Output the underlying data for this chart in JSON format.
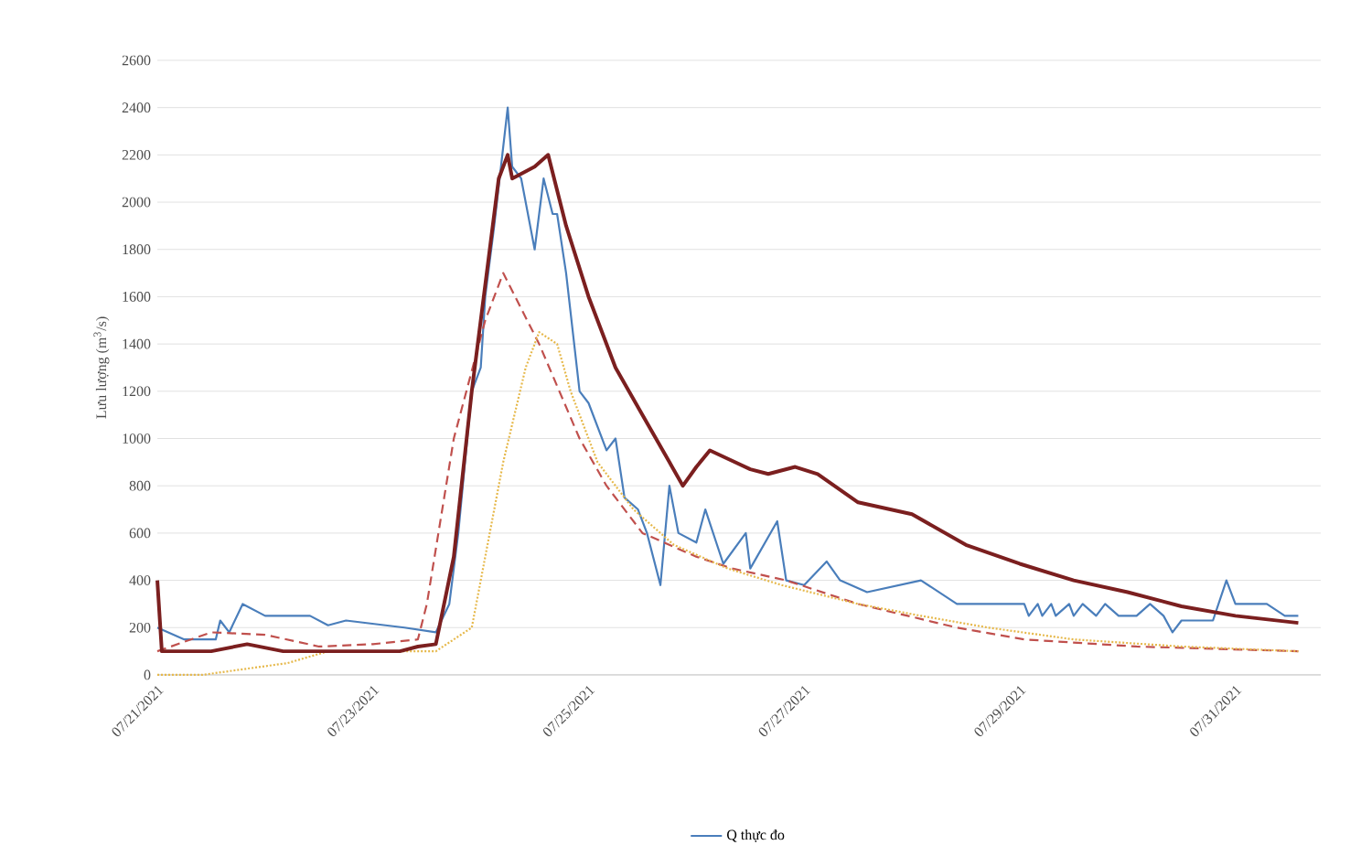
{
  "chart_data": {
    "type": "line",
    "ylabel": "Lưu lượng (m$^{3}$/s)",
    "xlim": [
      "2021-07-21T00:00",
      "2021-07-31T19:00"
    ],
    "xticks": [
      {
        "value": "2021-07-21",
        "label": "07/21/2021"
      },
      {
        "value": "2021-07-23",
        "label": "07/23/2021"
      },
      {
        "value": "2021-07-25",
        "label": "07/25/2021"
      },
      {
        "value": "2021-07-27",
        "label": "07/27/2021"
      },
      {
        "value": "2021-07-29",
        "label": "07/29/2021"
      },
      {
        "value": "2021-07-31",
        "label": "07/31/2021"
      }
    ],
    "ylim": [
      0,
      2600
    ],
    "yticks": [
      0,
      200,
      400,
      600,
      800,
      1000,
      1200,
      1400,
      1600,
      1800,
      2000,
      2200,
      2400,
      2600
    ],
    "grid": "y",
    "legend": "bottom",
    "series": [
      {
        "name": "Q thực đo",
        "color": "#4a7ebb",
        "line_style": "solid",
        "x": [
          "2021-07-21T00:00",
          "2021-07-21T06:00",
          "2021-07-21T13:00",
          "2021-07-21T14:00",
          "2021-07-21T16:00",
          "2021-07-21T19:00",
          "2021-07-22T00:00",
          "2021-07-22T10:00",
          "2021-07-22T14:00",
          "2021-07-22T18:00",
          "2021-07-23T07:00",
          "2021-07-23T14:00",
          "2021-07-23T17:00",
          "2021-07-23T19:00",
          "2021-07-23T22:00",
          "2021-07-24T00:00",
          "2021-07-24T01:00",
          "2021-07-24T03:00",
          "2021-07-24T06:00",
          "2021-07-24T07:00",
          "2021-07-24T09:00",
          "2021-07-24T12:00",
          "2021-07-24T14:00",
          "2021-07-24T16:00",
          "2021-07-24T17:00",
          "2021-07-24T19:00",
          "2021-07-24T22:00",
          "2021-07-25T00:00",
          "2021-07-25T04:00",
          "2021-07-25T06:00",
          "2021-07-25T08:00",
          "2021-07-25T11:00",
          "2021-07-25T13:00",
          "2021-07-25T16:00",
          "2021-07-25T18:00",
          "2021-07-25T20:00",
          "2021-07-26T00:00",
          "2021-07-26T02:00",
          "2021-07-26T06:00",
          "2021-07-26T11:00",
          "2021-07-26T12:00",
          "2021-07-26T18:00",
          "2021-07-26T20:00",
          "2021-07-27T00:00",
          "2021-07-27T05:00",
          "2021-07-27T08:00",
          "2021-07-27T14:00",
          "2021-07-28T02:00",
          "2021-07-28T10:00",
          "2021-07-29T01:00",
          "2021-07-29T02:00",
          "2021-07-29T04:00",
          "2021-07-29T05:00",
          "2021-07-29T07:00",
          "2021-07-29T08:00",
          "2021-07-29T11:00",
          "2021-07-29T12:00",
          "2021-07-29T14:00",
          "2021-07-29T17:00",
          "2021-07-29T19:00",
          "2021-07-29T22:00",
          "2021-07-30T02:00",
          "2021-07-30T05:00",
          "2021-07-30T08:00",
          "2021-07-30T10:00",
          "2021-07-30T12:00",
          "2021-07-30T19:00",
          "2021-07-30T22:00",
          "2021-07-31T00:00",
          "2021-07-31T07:00",
          "2021-07-31T11:00",
          "2021-07-31T14:00"
        ],
        "values": [
          200,
          150,
          150,
          230,
          180,
          300,
          250,
          250,
          210,
          230,
          200,
          180,
          300,
          600,
          1200,
          1300,
          1600,
          1900,
          2400,
          2150,
          2100,
          1800,
          2100,
          1950,
          1950,
          1700,
          1200,
          1150,
          950,
          1000,
          750,
          700,
          600,
          380,
          800,
          600,
          560,
          700,
          470,
          600,
          450,
          650,
          400,
          380,
          480,
          400,
          350,
          400,
          300,
          300,
          250,
          300,
          250,
          300,
          250,
          300,
          250,
          300,
          250,
          300,
          250,
          250,
          300,
          250,
          180,
          230,
          230,
          400,
          300,
          300,
          250,
          250
        ]
      },
      {
        "color": "#c0504d",
        "line_style": "dashed",
        "x": [
          "2021-07-21T00:00",
          "2021-07-21T12:00",
          "2021-07-22T00:00",
          "2021-07-22T12:00",
          "2021-07-23T00:00",
          "2021-07-23T10:00",
          "2021-07-23T12:00",
          "2021-07-23T18:00",
          "2021-07-24T01:00",
          "2021-07-24T05:00",
          "2021-07-24T13:00",
          "2021-07-24T22:00",
          "2021-07-25T04:00",
          "2021-07-25T12:00",
          "2021-07-26T00:00",
          "2021-07-26T08:00",
          "2021-07-26T20:00",
          "2021-07-27T12:00",
          "2021-07-28T10:00",
          "2021-07-29T01:00",
          "2021-07-30T02:00",
          "2021-07-31T14:00"
        ],
        "values": [
          100,
          180,
          170,
          120,
          130,
          150,
          300,
          1000,
          1500,
          1700,
          1400,
          1000,
          800,
          600,
          500,
          450,
          400,
          300,
          200,
          150,
          120,
          100
        ]
      },
      {
        "color": "#e6b84a",
        "line_style": "dotted",
        "x": [
          "2021-07-21T00:00",
          "2021-07-21T10:00",
          "2021-07-22T05:00",
          "2021-07-22T14:00",
          "2021-07-23T14:00",
          "2021-07-23T22:00",
          "2021-07-24T01:00",
          "2021-07-24T05:00",
          "2021-07-24T10:00",
          "2021-07-24T13:00",
          "2021-07-24T17:00",
          "2021-07-24T20:00",
          "2021-07-25T02:00",
          "2021-07-25T10:00",
          "2021-07-25T19:00",
          "2021-07-26T07:00",
          "2021-07-26T19:00",
          "2021-07-27T12:00",
          "2021-07-28T02:00",
          "2021-07-28T17:00",
          "2021-07-29T12:00",
          "2021-07-30T12:00",
          "2021-07-31T14:00"
        ],
        "values": [
          0,
          0,
          50,
          100,
          100,
          200,
          500,
          900,
          1300,
          1450,
          1400,
          1200,
          900,
          700,
          550,
          450,
          380,
          300,
          250,
          200,
          150,
          120,
          100
        ]
      },
      {
        "color": "#7b1f1f",
        "line_style": "solid",
        "x": [
          "2021-07-21T00:00",
          "2021-07-21T01:00",
          "2021-07-21T12:00",
          "2021-07-21T20:00",
          "2021-07-22T04:00",
          "2021-07-23T06:00",
          "2021-07-23T10:00",
          "2021-07-23T14:00",
          "2021-07-23T18:00",
          "2021-07-23T22:00",
          "2021-07-24T02:00",
          "2021-07-24T04:00",
          "2021-07-24T06:00",
          "2021-07-24T07:00",
          "2021-07-24T12:00",
          "2021-07-24T15:00",
          "2021-07-24T19:00",
          "2021-07-25T00:00",
          "2021-07-25T06:00",
          "2021-07-25T12:00",
          "2021-07-25T18:00",
          "2021-07-25T21:00",
          "2021-07-26T00:00",
          "2021-07-26T03:00",
          "2021-07-26T12:00",
          "2021-07-26T16:00",
          "2021-07-26T22:00",
          "2021-07-27T03:00",
          "2021-07-27T12:00",
          "2021-07-28T00:00",
          "2021-07-28T12:00",
          "2021-07-29T00:00",
          "2021-07-29T12:00",
          "2021-07-30T00:00",
          "2021-07-30T12:00",
          "2021-07-31T00:00",
          "2021-07-31T14:00"
        ],
        "values": [
          400,
          100,
          100,
          130,
          100,
          100,
          120,
          130,
          500,
          1200,
          1800,
          2100,
          2200,
          2100,
          2150,
          2200,
          1900,
          1600,
          1300,
          1100,
          900,
          800,
          880,
          950,
          870,
          850,
          880,
          850,
          730,
          680,
          550,
          470,
          400,
          350,
          290,
          250,
          220
        ]
      }
    ]
  }
}
